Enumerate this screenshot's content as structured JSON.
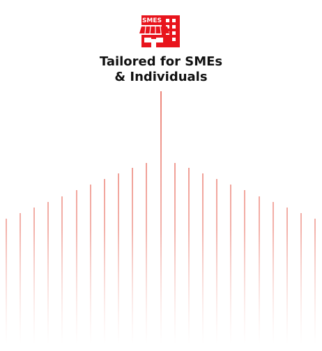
{
  "icon": {
    "label": "SMES"
  },
  "title": {
    "lines": [
      "Tailored for SMEs",
      "& Individuals"
    ]
  }
}
